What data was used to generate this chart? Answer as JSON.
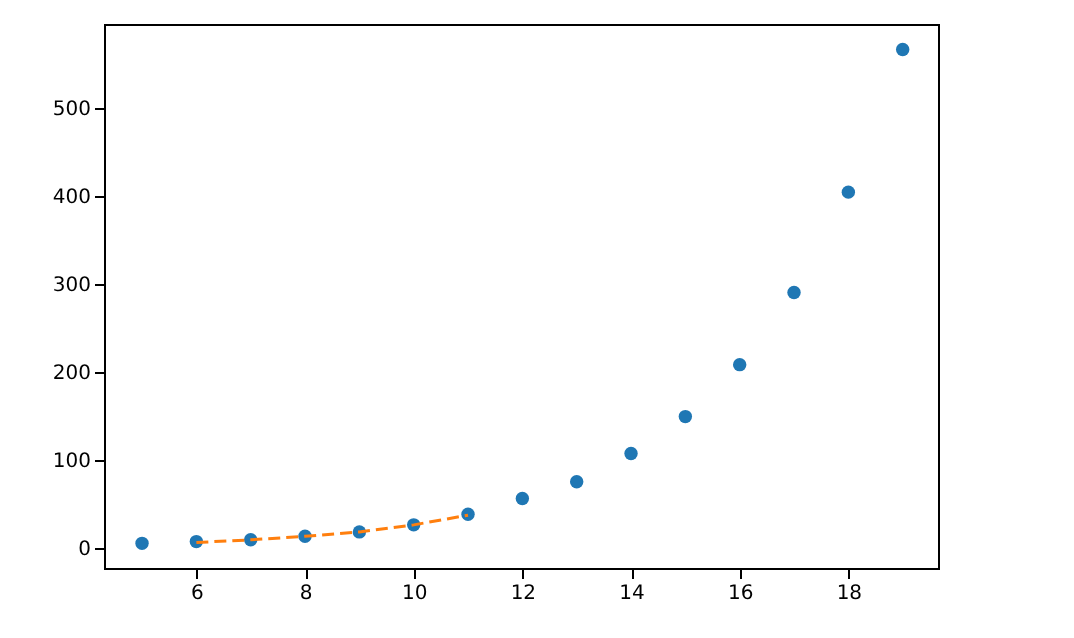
{
  "chart_data": {
    "type": "scatter",
    "xlim": [
      4.3,
      19.65
    ],
    "ylim": [
      -23,
      595
    ],
    "xticks": [
      6,
      8,
      10,
      12,
      14,
      16,
      18
    ],
    "yticks": [
      0,
      100,
      200,
      300,
      400,
      500
    ],
    "series": [
      {
        "color": "#1f77b4",
        "marker": "circle",
        "x": [
          5,
          6,
          7,
          8,
          9,
          10,
          11,
          12,
          13,
          14,
          15,
          16,
          17,
          18,
          19
        ],
        "values": [
          5,
          7,
          9,
          13,
          18,
          26,
          38,
          56,
          75,
          107,
          149,
          208,
          290,
          404,
          566
        ]
      },
      {
        "type": "line",
        "color": "#ff7f0e",
        "line_style": "dashed",
        "marker": "none",
        "x": [
          6,
          7,
          8,
          9,
          10,
          11
        ],
        "values": [
          6,
          9,
          13,
          18,
          26,
          37
        ]
      }
    ]
  }
}
